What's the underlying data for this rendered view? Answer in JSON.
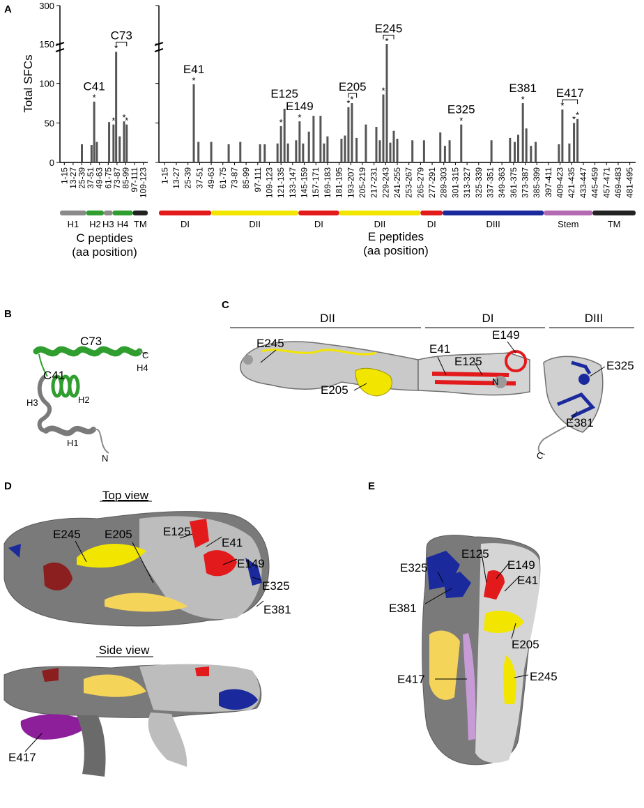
{
  "panels": {
    "a": "A",
    "b": "B",
    "c": "C",
    "d": "D",
    "e": "E"
  },
  "colors": {
    "bar": "#555555",
    "red": "#e31a1c",
    "yellow": "#f2e600",
    "blue": "#1a2a9c",
    "violet": "#b36ab3",
    "black": "#222222",
    "green": "#2f9e2f",
    "gray": "#8a8a8a",
    "dark_red": "#8b1e1e",
    "light_yellow": "#f5d45a",
    "purple": "#8e1f9a",
    "light_violet": "#c79bd6"
  },
  "chart_data": {
    "type": "bar",
    "ylabel": "Total SFCs",
    "y_ticks_lower": [
      "0",
      "50",
      "100",
      "150"
    ],
    "y_ticks_upper": [
      "300"
    ],
    "ylim": [
      0,
      300
    ],
    "axis_break": [
      150,
      150
    ],
    "c_chart": {
      "categories": [
        "1-15",
        "13-27",
        "25-39",
        "37-51",
        "49-63",
        "61-75",
        "73-87",
        "85-99",
        "97-111",
        "109-123"
      ],
      "bars": [
        {
          "pos": 2.5,
          "value": 23
        },
        {
          "pos": 3.6,
          "value": 22
        },
        {
          "pos": 3.9,
          "value": 77
        },
        {
          "pos": 4.2,
          "value": 26
        },
        {
          "pos": 5.6,
          "value": 51
        },
        {
          "pos": 6.1,
          "value": 48
        },
        {
          "pos": 6.4,
          "value": 140
        },
        {
          "pos": 6.8,
          "value": 33
        },
        {
          "pos": 7.3,
          "value": 52
        },
        {
          "pos": 7.6,
          "value": 48
        }
      ],
      "stars": [
        {
          "pos": 3.9,
          "value": 77
        },
        {
          "pos": 6.1,
          "value": 48
        },
        {
          "pos": 6.4,
          "value": 140
        },
        {
          "pos": 7.3,
          "value": 52
        },
        {
          "pos": 7.6,
          "value": 48
        }
      ],
      "peaks": [
        {
          "label": "C41",
          "pos": 3.9,
          "value": 77
        },
        {
          "label": "C73",
          "from": 6.4,
          "to": 7.6,
          "value": 140
        }
      ],
      "domains": [
        {
          "label": "H1",
          "from": 0,
          "to": 3,
          "color": "#8a8a8a"
        },
        {
          "label": "H2",
          "from": 3,
          "to": 5,
          "color": "#2f9e2f"
        },
        {
          "label": "H3",
          "from": 5,
          "to": 6,
          "color": "#8a8a8a"
        },
        {
          "label": "H4",
          "from": 6,
          "to": 8.3,
          "color": "#2f9e2f"
        },
        {
          "label": "TM",
          "from": 8.3,
          "to": 10,
          "color": "#222222"
        }
      ],
      "xlabel": [
        "C peptides",
        "(aa position)"
      ]
    },
    "e_chart": {
      "categories": [
        "1-15",
        "13-27",
        "25-39",
        "37-51",
        "49-63",
        "61-75",
        "73-87",
        "85-99",
        "97-111",
        "109-123",
        "121-135",
        "133-147",
        "145-159",
        "157-171",
        "169-183",
        "181-195",
        "193-207",
        "205-219",
        "217-231",
        "229-243",
        "241-255",
        "253-267",
        "265-279",
        "277-291",
        "289-303",
        "301-315",
        "313-327",
        "325-339",
        "337-351",
        "349-363",
        "361-375",
        "373-387",
        "385-399",
        "397-411",
        "409-423",
        "421-435",
        "433-447",
        "445-459",
        "457-471",
        "469-483",
        "481-495"
      ],
      "bars": [
        {
          "pos": 3,
          "value": 99
        },
        {
          "pos": 3.4,
          "value": 26
        },
        {
          "pos": 4.5,
          "value": 26
        },
        {
          "pos": 6,
          "value": 23
        },
        {
          "pos": 7,
          "value": 26
        },
        {
          "pos": 8.7,
          "value": 23
        },
        {
          "pos": 9.1,
          "value": 23
        },
        {
          "pos": 10.2,
          "value": 24
        },
        {
          "pos": 10.5,
          "value": 46
        },
        {
          "pos": 10.8,
          "value": 68
        },
        {
          "pos": 11.1,
          "value": 24
        },
        {
          "pos": 11.8,
          "value": 28
        },
        {
          "pos": 12.1,
          "value": 52
        },
        {
          "pos": 12.4,
          "value": 24
        },
        {
          "pos": 12.9,
          "value": 39
        },
        {
          "pos": 13.3,
          "value": 59
        },
        {
          "pos": 13.9,
          "value": 59
        },
        {
          "pos": 14.2,
          "value": 24
        },
        {
          "pos": 14.5,
          "value": 33
        },
        {
          "pos": 15.7,
          "value": 30
        },
        {
          "pos": 16,
          "value": 34
        },
        {
          "pos": 16.3,
          "value": 70
        },
        {
          "pos": 16.6,
          "value": 75
        },
        {
          "pos": 17,
          "value": 31
        },
        {
          "pos": 17.8,
          "value": 48
        },
        {
          "pos": 18.7,
          "value": 45
        },
        {
          "pos": 19,
          "value": 28
        },
        {
          "pos": 19.3,
          "value": 86
        },
        {
          "pos": 19.6,
          "value": 150
        },
        {
          "pos": 19.6,
          "value": 168,
          "upper": true
        },
        {
          "pos": 19.9,
          "value": 25
        },
        {
          "pos": 20.2,
          "value": 40
        },
        {
          "pos": 20.5,
          "value": 30
        },
        {
          "pos": 21.8,
          "value": 28
        },
        {
          "pos": 22.8,
          "value": 28
        },
        {
          "pos": 24.2,
          "value": 38
        },
        {
          "pos": 24.6,
          "value": 21
        },
        {
          "pos": 25,
          "value": 28
        },
        {
          "pos": 26,
          "value": 48
        },
        {
          "pos": 28.6,
          "value": 28
        },
        {
          "pos": 30.2,
          "value": 31
        },
        {
          "pos": 30.6,
          "value": 26
        },
        {
          "pos": 30.9,
          "value": 35
        },
        {
          "pos": 31.3,
          "value": 75
        },
        {
          "pos": 31.6,
          "value": 43
        },
        {
          "pos": 32,
          "value": 21
        },
        {
          "pos": 32.4,
          "value": 26
        },
        {
          "pos": 34.4,
          "value": 23
        },
        {
          "pos": 34.7,
          "value": 67
        },
        {
          "pos": 35.3,
          "value": 24
        },
        {
          "pos": 35.7,
          "value": 50
        },
        {
          "pos": 36,
          "value": 55
        }
      ],
      "stars": [
        {
          "pos": 3,
          "value": 99
        },
        {
          "pos": 10.5,
          "value": 46
        },
        {
          "pos": 12.1,
          "value": 52
        },
        {
          "pos": 16.3,
          "value": 70
        },
        {
          "pos": 16.6,
          "value": 75
        },
        {
          "pos": 19.3,
          "value": 86
        },
        {
          "pos": 19.6,
          "value": 168
        },
        {
          "pos": 26,
          "value": 48
        },
        {
          "pos": 31.3,
          "value": 75
        },
        {
          "pos": 34.7,
          "value": 67
        },
        {
          "pos": 35.7,
          "value": 50
        },
        {
          "pos": 36,
          "value": 55
        }
      ],
      "peaks": [
        {
          "label": "E41",
          "pos": 3,
          "value": 99
        },
        {
          "label": "E125",
          "pos": 10.8,
          "value": 68
        },
        {
          "label": "E149",
          "pos": 12.1,
          "value": 52
        },
        {
          "label": "E205",
          "from": 16.3,
          "to": 17,
          "value": 75
        },
        {
          "label": "E245",
          "from": 19.3,
          "to": 20.2,
          "value": 168
        },
        {
          "label": "E325",
          "pos": 26,
          "value": 48
        },
        {
          "label": "E381",
          "pos": 31.3,
          "value": 75
        },
        {
          "label": "E417",
          "from": 34.7,
          "to": 36,
          "value": 67
        }
      ],
      "domains": [
        {
          "label": "DI",
          "from": 0,
          "to": 4.5,
          "color": "#e31a1c"
        },
        {
          "label": "DII",
          "from": 4.5,
          "to": 12,
          "color": "#f2e600"
        },
        {
          "label": "DI",
          "from": 12,
          "to": 15.5,
          "color": "#e31a1c"
        },
        {
          "label": "DII",
          "from": 15.5,
          "to": 22.5,
          "color": "#f2e600"
        },
        {
          "label": "DI",
          "from": 22.5,
          "to": 24.4,
          "color": "#e31a1c"
        },
        {
          "label": "DIII",
          "from": 24.4,
          "to": 33.1,
          "color": "#1a2a9c"
        },
        {
          "label": "Stem",
          "from": 33.1,
          "to": 37.3,
          "color": "#b36ab3"
        },
        {
          "label": "TM",
          "from": 37.3,
          "to": 41,
          "color": "#222222"
        }
      ],
      "xlabel": [
        "E peptides",
        "(aa position)"
      ]
    }
  },
  "panel_b": {
    "c73": "C73",
    "c41": "C41",
    "h1": "H1",
    "h2": "H2",
    "h3": "H3",
    "h4": "H4",
    "c_term": "C",
    "n_term": "N"
  },
  "panel_c": {
    "domains": [
      {
        "label": "DII"
      },
      {
        "label": "DI"
      },
      {
        "label": "DIII"
      }
    ],
    "labels": {
      "e245": "E245",
      "e205": "E205",
      "e41": "E41",
      "e125": "E125",
      "e149": "E149",
      "e325": "E325",
      "e381": "E381",
      "n_term": "N",
      "c_term": "C"
    }
  },
  "panel_d": {
    "top_view": "Top view",
    "side_view": "Side view",
    "labels": {
      "e245": "E245",
      "e205": "E205",
      "e125": "E125",
      "e41": "E41",
      "e149": "E149",
      "e325": "E325",
      "e381": "E381",
      "e417": "E417"
    }
  },
  "panel_e": {
    "labels": {
      "e325": "E325",
      "e125": "E125",
      "e149": "E149",
      "e41": "E41",
      "e381": "E381",
      "e205": "E205",
      "e417": "E417",
      "e245": "E245"
    }
  }
}
